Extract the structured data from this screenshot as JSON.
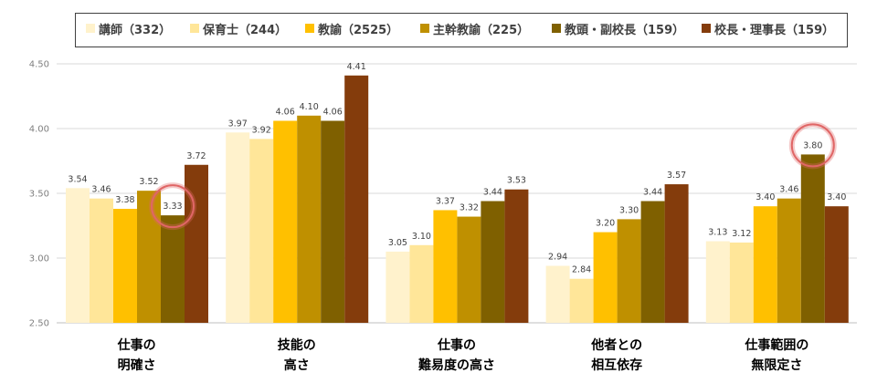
{
  "chart_data": {
    "type": "bar",
    "categories": [
      [
        "仕事の",
        "明確さ"
      ],
      [
        "技能の",
        "高さ"
      ],
      [
        "仕事の",
        "難易度の高さ"
      ],
      [
        "他者との",
        "相互依存"
      ],
      [
        "仕事範囲の",
        "無限定さ"
      ]
    ],
    "series": [
      {
        "name": "講師（332）",
        "color": "#FFF2CC",
        "values": [
          3.54,
          3.97,
          3.05,
          2.94,
          3.13
        ]
      },
      {
        "name": "保育士（244）",
        "color": "#FFE699",
        "values": [
          3.46,
          3.92,
          3.1,
          2.84,
          3.12
        ]
      },
      {
        "name": "教諭（2525）",
        "color": "#FFC000",
        "values": [
          3.38,
          4.06,
          3.37,
          3.2,
          3.4
        ]
      },
      {
        "name": "主幹教諭（225）",
        "color": "#BF9000",
        "values": [
          3.52,
          4.1,
          3.32,
          3.3,
          3.46
        ]
      },
      {
        "name": "教頭・副校長（159）",
        "color": "#7F6000",
        "values": [
          3.33,
          4.06,
          3.44,
          3.44,
          3.8
        ]
      },
      {
        "name": "校長・理事長（159）",
        "color": "#843C0C",
        "values": [
          3.72,
          4.41,
          3.53,
          3.57,
          3.4
        ]
      }
    ],
    "ylim": [
      2.5,
      4.5
    ],
    "yticks": [
      "2.50",
      "3.00",
      "3.50",
      "4.00",
      "4.50"
    ],
    "grid": true,
    "legend_position": "top",
    "highlights": [
      {
        "category_index": 0,
        "series_index": 4
      },
      {
        "category_index": 4,
        "series_index": 4
      }
    ],
    "highlight_color": "#E06666"
  }
}
